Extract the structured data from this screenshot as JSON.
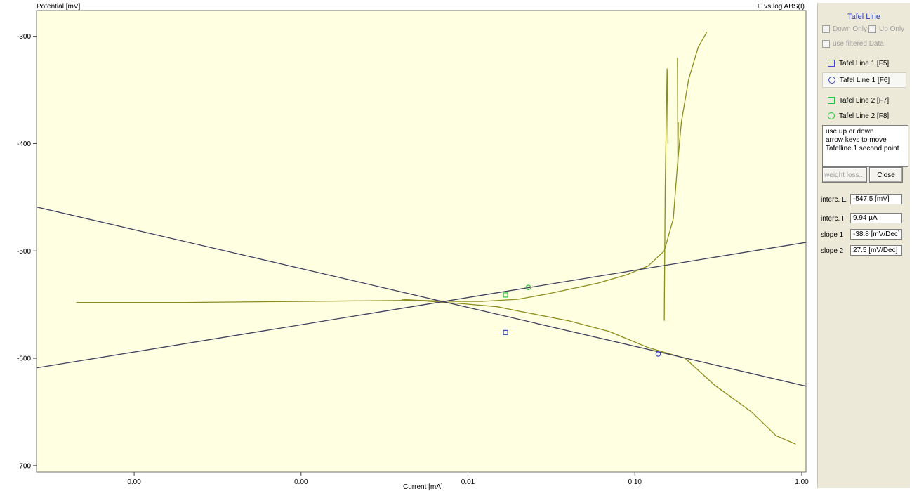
{
  "chart": {
    "y_axis_title": "Potential [mV]",
    "graph_title": "E vs log ABS(I)",
    "x_axis_title": "Current [mA]",
    "y_ticks": [
      {
        "value": -300,
        "label": "-300"
      },
      {
        "value": -400,
        "label": "-400"
      },
      {
        "value": -500,
        "label": "-500"
      },
      {
        "value": -600,
        "label": "-600"
      },
      {
        "value": -700,
        "label": "-700"
      }
    ],
    "x_ticks": [
      {
        "value": 0.0001,
        "label": "0.00"
      },
      {
        "value": 0.001,
        "label": "0.00"
      },
      {
        "value": 0.01,
        "label": "0.01"
      },
      {
        "value": 0.1,
        "label": "0.10"
      },
      {
        "value": 1,
        "label": "1.00"
      }
    ],
    "colors": {
      "background": "#ffffe1",
      "curve": "#8d8d1e",
      "tafel_line": "#404060",
      "marker_blue": "#3b48c8",
      "marker_green": "#22c63a"
    }
  },
  "chart_data": {
    "type": "line",
    "x_scale": "log",
    "xlim": [
      2.6e-05,
      1.06
    ],
    "ylim": [
      -706,
      -276
    ],
    "grid": false,
    "series": [
      {
        "points": [
          [
            4.5e-05,
            -548
          ],
          [
            0.0002,
            -548
          ],
          [
            0.001,
            -547
          ],
          [
            0.005,
            -546
          ],
          [
            0.0085,
            -547
          ],
          [
            0.012,
            -547
          ],
          [
            0.02,
            -545
          ],
          [
            0.03,
            -540
          ],
          [
            0.06,
            -530
          ],
          [
            0.09,
            -522
          ],
          [
            0.12,
            -514
          ],
          [
            0.15,
            -500
          ],
          [
            0.17,
            -470
          ],
          [
            0.18,
            -420
          ],
          [
            0.19,
            -380
          ],
          [
            0.21,
            -340
          ],
          [
            0.24,
            -310
          ],
          [
            0.27,
            -296
          ]
        ]
      },
      {
        "points": [
          [
            0.004,
            -545
          ],
          [
            0.009,
            -549
          ],
          [
            0.015,
            -552
          ],
          [
            0.02,
            -556
          ],
          [
            0.04,
            -565
          ],
          [
            0.07,
            -575
          ],
          [
            0.12,
            -590
          ],
          [
            0.2,
            -600
          ],
          [
            0.3,
            -625
          ],
          [
            0.5,
            -650
          ],
          [
            0.7,
            -672
          ],
          [
            0.92,
            -680
          ]
        ]
      },
      {
        "points": [
          [
            0.15,
            -565
          ],
          [
            0.152,
            -440
          ],
          [
            0.156,
            -330
          ],
          [
            0.158,
            -400
          ]
        ]
      },
      {
        "points": [
          [
            0.18,
            -320
          ],
          [
            0.181,
            -420
          ],
          [
            0.182,
            -380
          ]
        ]
      }
    ],
    "tafel_lines": [
      {
        "points": [
          [
            2.6e-05,
            -459
          ],
          [
            1.06,
            -626
          ]
        ]
      },
      {
        "points": [
          [
            2.6e-05,
            -609
          ],
          [
            1.06,
            -492
          ]
        ]
      }
    ],
    "markers": [
      {
        "shape": "square",
        "color": "blue",
        "x": 0.0168,
        "y": -576
      },
      {
        "shape": "circle",
        "color": "blue",
        "x": 0.138,
        "y": -596
      },
      {
        "shape": "square",
        "color": "green",
        "x": 0.0168,
        "y": -541
      },
      {
        "shape": "circle",
        "color": "green",
        "x": 0.023,
        "y": -534
      }
    ]
  },
  "panel": {
    "title": "Tafel Line",
    "down_only_pre": "",
    "down_only_u": "D",
    "down_only_post": "own Only",
    "up_only_u": "U",
    "up_only_post": "p Only",
    "filtered_label": "use filtered Data",
    "tafel_items": [
      {
        "label": "Tafel Line 1 [F5]",
        "shape": "square",
        "color": "#3b48c8",
        "icon": "square-marker-icon"
      },
      {
        "label": "Tafel Line 1 [F6]",
        "shape": "circle",
        "color": "#3b48c8",
        "icon": "circle-marker-icon"
      },
      {
        "label": "Tafel Line 2 [F7]",
        "shape": "square",
        "color": "#22c63a",
        "icon": "square-marker-icon"
      },
      {
        "label": "Tafel Line 2 [F8]",
        "shape": "circle",
        "color": "#22c63a",
        "icon": "circle-marker-icon"
      }
    ],
    "help_text": "use up or down\narrow keys to move\nTafelline 1 second point",
    "weight_loss_label": "weight loss...",
    "close_label": "Close",
    "fields": [
      {
        "label": "interc. E",
        "value": "-547.5 [mV]"
      },
      {
        "label": "interc. I",
        "value": "9.94 µA"
      },
      {
        "label": "slope 1",
        "value": "-38.8 [mV/Dec]"
      },
      {
        "label": "slope 2",
        "value": "27.5 [mV/Dec]"
      }
    ]
  }
}
